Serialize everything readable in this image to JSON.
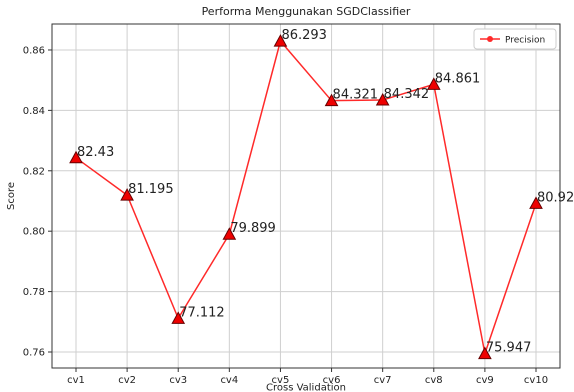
{
  "chart_data": {
    "type": "line",
    "title": "Performa Menggunakan SGDClassifier",
    "xlabel": "Cross Validation",
    "ylabel": "Score",
    "categories": [
      "cv1",
      "cv2",
      "cv3",
      "cv4",
      "cv5",
      "cv6",
      "cv7",
      "cv8",
      "cv9",
      "cv10"
    ],
    "series": [
      {
        "name": "Precision",
        "color": "#ff2a2a",
        "values": [
          0.8243,
          0.81195,
          0.77112,
          0.79899,
          0.86293,
          0.84321,
          0.84342,
          0.84861,
          0.75947,
          0.8092
        ],
        "value_labels": [
          "82.43",
          "81.195",
          "77.112",
          "79.899",
          "86.293",
          "84.321",
          "84.342",
          "84.861",
          "75.947",
          "80.92"
        ]
      }
    ],
    "ylim": [
      0.7547,
      0.8686
    ],
    "yticks": [
      {
        "value": 0.76,
        "label": "0.76"
      },
      {
        "value": 0.78,
        "label": "0.78"
      },
      {
        "value": 0.8,
        "label": "0.80"
      },
      {
        "value": 0.82,
        "label": "0.82"
      },
      {
        "value": 0.84,
        "label": "0.84"
      },
      {
        "value": 0.86,
        "label": "0.86"
      }
    ],
    "grid": true,
    "legend": "upper right"
  }
}
